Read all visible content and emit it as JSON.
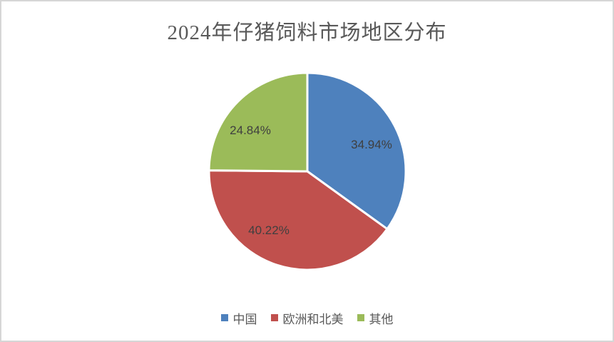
{
  "page": {
    "background": "#FFFFFF",
    "frame_border_color": "#D6D6D6"
  },
  "chart_data": {
    "type": "pie",
    "title": "2024年仔猪饲料市场地区分布",
    "start_angle_deg": 0,
    "direction": "clockwise",
    "legend_position": "bottom",
    "data_labels": "percent",
    "slices": [
      {
        "label": "中国",
        "value": 34.94,
        "display": "34.94%",
        "color": "#4E81BD"
      },
      {
        "label": "欧洲和北美",
        "value": 40.22,
        "display": "40.22%",
        "color": "#C0504D"
      },
      {
        "label": "其他",
        "value": 24.84,
        "display": "24.84%",
        "color": "#9BBB59"
      }
    ],
    "text_colors": {
      "title": "#595959",
      "data_label": "#3F3F3F",
      "legend": "#595959"
    }
  }
}
